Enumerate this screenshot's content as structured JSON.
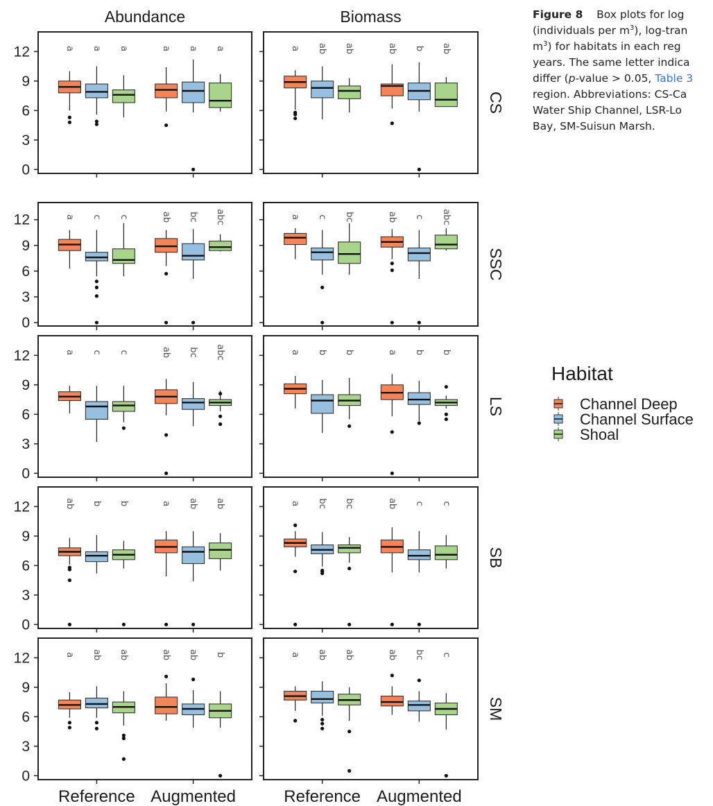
{
  "figure_caption": {
    "label": "Figure 8",
    "lines": [
      "Box plots for log",
      "(individuals per m",
      "m",
      "years. The same letter indica",
      "differ (",
      "region. Abbreviations: CS-Ca",
      "Water Ship Channel, LSR-Lo",
      "Bay, SM-Suisun Marsh."
    ],
    "line2_tail": "), log-tran",
    "line3_tail": ") for habitats in each reg",
    "sup": "3",
    "p_italic": "p",
    "line5_mid": "-value > 0.05, ",
    "table_ref": "Table 3"
  },
  "chart_data": {
    "type": "boxplot",
    "columns": [
      "Abundance",
      "Biomass"
    ],
    "rows": [
      "CS",
      "SSC",
      "LS",
      "SB",
      "SM"
    ],
    "x_categories": [
      "Reference",
      "Augmented"
    ],
    "y_ticks": [
      0,
      3,
      6,
      9,
      12
    ],
    "ylim": [
      -0.4,
      14
    ],
    "legend": {
      "title": "Habitat",
      "entries": [
        {
          "name": "Channel Deep",
          "color": "#f4855a"
        },
        {
          "name": "Channel Surface",
          "color": "#96bfe0"
        },
        {
          "name": "Shoal",
          "color": "#a8d48b"
        }
      ]
    },
    "panels": [
      {
        "column": "Abundance",
        "row": "CS",
        "boxes": [
          {
            "x": "Reference",
            "habitat": "Channel Deep",
            "lw": 6.0,
            "q1": 7.8,
            "med": 8.4,
            "q3": 9.0,
            "uw": 10.0,
            "outliers": [
              4.8,
              5.3
            ],
            "letter": "a"
          },
          {
            "x": "Reference",
            "habitat": "Channel Surface",
            "lw": 5.6,
            "q1": 7.3,
            "med": 7.9,
            "q3": 8.7,
            "uw": 10.5,
            "outliers": [
              4.6,
              4.9
            ],
            "letter": "a"
          },
          {
            "x": "Reference",
            "habitat": "Shoal",
            "lw": 5.3,
            "q1": 6.8,
            "med": 7.6,
            "q3": 8.1,
            "uw": 9.6,
            "outliers": [],
            "letter": "a"
          },
          {
            "x": "Augmented",
            "habitat": "Channel Deep",
            "lw": 5.9,
            "q1": 7.3,
            "med": 8.1,
            "q3": 8.7,
            "uw": 10.4,
            "outliers": [
              4.5
            ],
            "letter": "a"
          },
          {
            "x": "Augmented",
            "habitat": "Channel Surface",
            "lw": 5.8,
            "q1": 6.8,
            "med": 8.0,
            "q3": 8.9,
            "uw": 11.2,
            "outliers": [
              0.0
            ],
            "letter": "a"
          },
          {
            "x": "Augmented",
            "habitat": "Shoal",
            "lw": 5.9,
            "q1": 6.3,
            "med": 7.0,
            "q3": 8.8,
            "uw": 9.7,
            "outliers": [],
            "letter": "a"
          }
        ]
      },
      {
        "column": "Biomass",
        "row": "CS",
        "boxes": [
          {
            "x": "Reference",
            "habitat": "Channel Deep",
            "lw": 6.1,
            "q1": 8.3,
            "med": 8.9,
            "q3": 9.5,
            "uw": 10.1,
            "outliers": [
              5.2,
              5.6,
              5.8
            ],
            "letter": "a"
          },
          {
            "x": "Reference",
            "habitat": "Channel Surface",
            "lw": 5.1,
            "q1": 7.3,
            "med": 8.3,
            "q3": 9.0,
            "uw": 10.5,
            "outliers": [],
            "letter": "ab"
          },
          {
            "x": "Reference",
            "habitat": "Shoal",
            "lw": 5.8,
            "q1": 7.2,
            "med": 8.0,
            "q3": 8.5,
            "uw": 9.3,
            "outliers": [],
            "letter": "ab"
          },
          {
            "x": "Augmented",
            "habitat": "Channel Deep",
            "lw": 6.2,
            "q1": 7.5,
            "med": 8.5,
            "q3": 8.7,
            "uw": 10.7,
            "outliers": [
              4.7
            ],
            "letter": "ab"
          },
          {
            "x": "Augmented",
            "habitat": "Channel Surface",
            "lw": 5.9,
            "q1": 7.1,
            "med": 8.0,
            "q3": 8.8,
            "uw": 10.9,
            "outliers": [
              0.0
            ],
            "letter": "b"
          },
          {
            "x": "Augmented",
            "habitat": "Shoal",
            "lw": 6.4,
            "q1": 6.4,
            "med": 7.1,
            "q3": 8.8,
            "uw": 9.4,
            "outliers": [],
            "letter": "ab"
          }
        ]
      },
      {
        "column": "Abundance",
        "row": "SSC",
        "boxes": [
          {
            "x": "Reference",
            "habitat": "Channel Deep",
            "lw": 6.3,
            "q1": 8.4,
            "med": 9.1,
            "q3": 9.7,
            "uw": 10.8,
            "outliers": [],
            "letter": "a"
          },
          {
            "x": "Reference",
            "habitat": "Channel Surface",
            "lw": 5.4,
            "q1": 7.2,
            "med": 7.6,
            "q3": 8.2,
            "uw": 10.8,
            "outliers": [
              0.0,
              3.1,
              4.1,
              4.8
            ],
            "letter": "c"
          },
          {
            "x": "Reference",
            "habitat": "Shoal",
            "lw": 5.4,
            "q1": 6.9,
            "med": 7.3,
            "q3": 8.6,
            "uw": 11.6,
            "outliers": [],
            "letter": "c"
          },
          {
            "x": "Augmented",
            "habitat": "Channel Deep",
            "lw": 6.6,
            "q1": 8.2,
            "med": 8.9,
            "q3": 9.8,
            "uw": 10.8,
            "outliers": [
              0.0,
              5.7
            ],
            "letter": "ab"
          },
          {
            "x": "Augmented",
            "habitat": "Channel Surface",
            "lw": 5.1,
            "q1": 7.3,
            "med": 7.8,
            "q3": 9.2,
            "uw": 10.9,
            "outliers": [
              0.0
            ],
            "letter": "bc"
          },
          {
            "x": "Augmented",
            "habitat": "Shoal",
            "lw": 8.3,
            "q1": 8.4,
            "med": 8.8,
            "q3": 9.5,
            "uw": 10.3,
            "outliers": [],
            "letter": "abc"
          }
        ]
      },
      {
        "column": "Biomass",
        "row": "SSC",
        "boxes": [
          {
            "x": "Reference",
            "habitat": "Channel Deep",
            "lw": 7.4,
            "q1": 9.1,
            "med": 9.9,
            "q3": 10.4,
            "uw": 11.0,
            "outliers": [],
            "letter": "a"
          },
          {
            "x": "Reference",
            "habitat": "Channel Surface",
            "lw": 5.6,
            "q1": 7.3,
            "med": 8.2,
            "q3": 8.7,
            "uw": 10.8,
            "outliers": [
              0.0,
              4.1
            ],
            "letter": "c"
          },
          {
            "x": "Reference",
            "habitat": "Shoal",
            "lw": 5.6,
            "q1": 6.9,
            "med": 8.0,
            "q3": 9.4,
            "uw": 11.6,
            "outliers": [],
            "letter": "bc"
          },
          {
            "x": "Augmented",
            "habitat": "Channel Deep",
            "lw": 7.4,
            "q1": 8.8,
            "med": 9.4,
            "q3": 10.0,
            "uw": 10.9,
            "outliers": [
              0.0,
              6.1,
              6.9
            ],
            "letter": "ab"
          },
          {
            "x": "Augmented",
            "habitat": "Channel Surface",
            "lw": 5.1,
            "q1": 7.2,
            "med": 8.1,
            "q3": 8.7,
            "uw": 10.8,
            "outliers": [
              0.0
            ],
            "letter": "c"
          },
          {
            "x": "Augmented",
            "habitat": "Shoal",
            "lw": 8.4,
            "q1": 8.6,
            "med": 9.1,
            "q3": 10.2,
            "uw": 11.0,
            "outliers": [],
            "letter": "abc"
          }
        ]
      },
      {
        "column": "Abundance",
        "row": "LS",
        "boxes": [
          {
            "x": "Reference",
            "habitat": "Channel Deep",
            "lw": 6.1,
            "q1": 7.4,
            "med": 7.8,
            "q3": 8.3,
            "uw": 8.9,
            "outliers": [],
            "letter": "a"
          },
          {
            "x": "Reference",
            "habitat": "Channel Surface",
            "lw": 3.2,
            "q1": 5.5,
            "med": 6.8,
            "q3": 7.3,
            "uw": 8.9,
            "outliers": [],
            "letter": "c"
          },
          {
            "x": "Reference",
            "habitat": "Shoal",
            "lw": 5.2,
            "q1": 6.3,
            "med": 6.9,
            "q3": 7.3,
            "uw": 8.9,
            "outliers": [
              4.6
            ],
            "letter": "c"
          },
          {
            "x": "Augmented",
            "habitat": "Channel Deep",
            "lw": 5.9,
            "q1": 7.1,
            "med": 7.8,
            "q3": 8.5,
            "uw": 9.6,
            "outliers": [
              0.0,
              3.9
            ],
            "letter": "ab"
          },
          {
            "x": "Augmented",
            "habitat": "Channel Surface",
            "lw": 4.8,
            "q1": 6.5,
            "med": 7.2,
            "q3": 7.6,
            "uw": 9.3,
            "outliers": [],
            "letter": "bc"
          },
          {
            "x": "Augmented",
            "habitat": "Shoal",
            "lw": 6.3,
            "q1": 6.9,
            "med": 7.2,
            "q3": 7.5,
            "uw": 8.4,
            "outliers": [
              5.0,
              5.8,
              8.1
            ],
            "letter": "abc"
          }
        ]
      },
      {
        "column": "Biomass",
        "row": "LS",
        "boxes": [
          {
            "x": "Reference",
            "habitat": "Channel Deep",
            "lw": 6.6,
            "q1": 8.1,
            "med": 8.6,
            "q3": 9.1,
            "uw": 9.9,
            "outliers": [],
            "letter": "a"
          },
          {
            "x": "Reference",
            "habitat": "Channel Surface",
            "lw": 4.1,
            "q1": 6.1,
            "med": 7.4,
            "q3": 8.0,
            "uw": 9.5,
            "outliers": [],
            "letter": "b"
          },
          {
            "x": "Reference",
            "habitat": "Shoal",
            "lw": 5.5,
            "q1": 6.9,
            "med": 7.4,
            "q3": 8.0,
            "uw": 9.7,
            "outliers": [
              4.8
            ],
            "letter": "b"
          },
          {
            "x": "Augmented",
            "habitat": "Channel Deep",
            "lw": 5.8,
            "q1": 7.5,
            "med": 8.2,
            "q3": 9.0,
            "uw": 10.1,
            "outliers": [
              0.0,
              4.2
            ],
            "letter": "a"
          },
          {
            "x": "Augmented",
            "habitat": "Channel Surface",
            "lw": 5.3,
            "q1": 7.0,
            "med": 7.5,
            "q3": 8.2,
            "uw": 9.4,
            "outliers": [
              5.1
            ],
            "letter": "b"
          },
          {
            "x": "Augmented",
            "habitat": "Shoal",
            "lw": 6.6,
            "q1": 6.9,
            "med": 7.2,
            "q3": 7.5,
            "uw": 7.9,
            "outliers": [
              5.5,
              6.0,
              8.8
            ],
            "letter": "b"
          }
        ]
      },
      {
        "column": "Abundance",
        "row": "SB",
        "boxes": [
          {
            "x": "Reference",
            "habitat": "Channel Deep",
            "lw": 6.1,
            "q1": 7.0,
            "med": 7.4,
            "q3": 7.8,
            "uw": 8.8,
            "outliers": [
              0.0,
              4.5,
              5.6,
              5.8
            ],
            "letter": "ab"
          },
          {
            "x": "Reference",
            "habitat": "Channel Surface",
            "lw": 5.2,
            "q1": 6.4,
            "med": 7.0,
            "q3": 7.4,
            "uw": 9.1,
            "outliers": [],
            "letter": "b"
          },
          {
            "x": "Reference",
            "habitat": "Shoal",
            "lw": 5.7,
            "q1": 6.6,
            "med": 7.1,
            "q3": 7.6,
            "uw": 8.5,
            "outliers": [
              0.0
            ],
            "letter": "b"
          },
          {
            "x": "Augmented",
            "habitat": "Channel Deep",
            "lw": 4.9,
            "q1": 7.3,
            "med": 7.9,
            "q3": 8.6,
            "uw": 9.5,
            "outliers": [
              0.0
            ],
            "letter": "a"
          },
          {
            "x": "Augmented",
            "habitat": "Channel Surface",
            "lw": 4.4,
            "q1": 6.2,
            "med": 7.4,
            "q3": 7.9,
            "uw": 9.5,
            "outliers": [
              0.0
            ],
            "letter": "ab"
          },
          {
            "x": "Augmented",
            "habitat": "Shoal",
            "lw": 5.5,
            "q1": 6.7,
            "med": 7.6,
            "q3": 8.3,
            "uw": 9.3,
            "outliers": [],
            "letter": "ab"
          }
        ]
      },
      {
        "column": "Biomass",
        "row": "SB",
        "boxes": [
          {
            "x": "Reference",
            "habitat": "Channel Deep",
            "lw": 6.9,
            "q1": 7.9,
            "med": 8.3,
            "q3": 8.7,
            "uw": 9.5,
            "outliers": [
              0.0,
              5.4,
              10.1
            ],
            "letter": "a"
          },
          {
            "x": "Reference",
            "habitat": "Channel Surface",
            "lw": 5.9,
            "q1": 7.2,
            "med": 7.6,
            "q3": 8.1,
            "uw": 9.4,
            "outliers": [
              5.2,
              5.4,
              5.5
            ],
            "letter": "bc"
          },
          {
            "x": "Reference",
            "habitat": "Shoal",
            "lw": 6.3,
            "q1": 7.3,
            "med": 7.8,
            "q3": 8.1,
            "uw": 8.9,
            "outliers": [
              0.0,
              5.7
            ],
            "letter": "bc"
          },
          {
            "x": "Augmented",
            "habitat": "Channel Deep",
            "lw": 5.3,
            "q1": 7.3,
            "med": 7.9,
            "q3": 8.6,
            "uw": 9.9,
            "outliers": [
              0.0
            ],
            "letter": "ab"
          },
          {
            "x": "Augmented",
            "habitat": "Channel Surface",
            "lw": 5.3,
            "q1": 6.6,
            "med": 7.0,
            "q3": 7.6,
            "uw": 9.5,
            "outliers": [
              0.0
            ],
            "letter": "c"
          },
          {
            "x": "Augmented",
            "habitat": "Shoal",
            "lw": 5.7,
            "q1": 6.6,
            "med": 7.1,
            "q3": 8.0,
            "uw": 9.1,
            "outliers": [],
            "letter": "c"
          }
        ]
      },
      {
        "column": "Abundance",
        "row": "SM",
        "boxes": [
          {
            "x": "Reference",
            "habitat": "Channel Deep",
            "lw": 5.9,
            "q1": 6.8,
            "med": 7.2,
            "q3": 7.7,
            "uw": 8.5,
            "outliers": [
              4.9,
              5.4
            ],
            "letter": "a"
          },
          {
            "x": "Reference",
            "habitat": "Channel Surface",
            "lw": 5.9,
            "q1": 6.9,
            "med": 7.3,
            "q3": 7.9,
            "uw": 9.1,
            "outliers": [
              4.8,
              5.4
            ],
            "letter": "ab"
          },
          {
            "x": "Reference",
            "habitat": "Shoal",
            "lw": 5.1,
            "q1": 6.4,
            "med": 7.0,
            "q3": 7.5,
            "uw": 8.6,
            "outliers": [
              1.7,
              3.8,
              4.1
            ],
            "letter": "ab"
          },
          {
            "x": "Augmented",
            "habitat": "Channel Deep",
            "lw": 5.6,
            "q1": 6.3,
            "med": 7.0,
            "q3": 8.0,
            "uw": 9.4,
            "outliers": [
              10.1
            ],
            "letter": "ab"
          },
          {
            "x": "Augmented",
            "habitat": "Channel Surface",
            "lw": 4.9,
            "q1": 6.2,
            "med": 6.8,
            "q3": 7.3,
            "uw": 8.7,
            "outliers": [
              9.8
            ],
            "letter": "ab"
          },
          {
            "x": "Augmented",
            "habitat": "Shoal",
            "lw": 4.9,
            "q1": 5.9,
            "med": 6.6,
            "q3": 7.3,
            "uw": 8.6,
            "outliers": [
              0.0
            ],
            "letter": "b"
          }
        ]
      },
      {
        "column": "Biomass",
        "row": "SM",
        "boxes": [
          {
            "x": "Reference",
            "habitat": "Channel Deep",
            "lw": 6.6,
            "q1": 7.7,
            "med": 8.1,
            "q3": 8.6,
            "uw": 9.1,
            "outliers": [
              5.6
            ],
            "letter": "a"
          },
          {
            "x": "Reference",
            "habitat": "Channel Surface",
            "lw": 6.1,
            "q1": 7.4,
            "med": 7.8,
            "q3": 8.6,
            "uw": 9.6,
            "outliers": [
              4.8,
              5.3,
              5.7
            ],
            "letter": "ab"
          },
          {
            "x": "Reference",
            "habitat": "Shoal",
            "lw": 5.6,
            "q1": 7.2,
            "med": 7.7,
            "q3": 8.3,
            "uw": 9.0,
            "outliers": [
              0.5,
              4.5
            ],
            "letter": "ab"
          },
          {
            "x": "Augmented",
            "habitat": "Channel Deep",
            "lw": 6.2,
            "q1": 7.1,
            "med": 7.5,
            "q3": 8.1,
            "uw": 9.1,
            "outliers": [
              10.2
            ],
            "letter": "ab"
          },
          {
            "x": "Augmented",
            "habitat": "Channel Surface",
            "lw": 5.5,
            "q1": 6.6,
            "med": 7.2,
            "q3": 7.6,
            "uw": 8.6,
            "outliers": [
              9.7
            ],
            "letter": "bc"
          },
          {
            "x": "Augmented",
            "habitat": "Shoal",
            "lw": 4.7,
            "q1": 6.2,
            "med": 6.8,
            "q3": 7.4,
            "uw": 8.4,
            "outliers": [
              0.0
            ],
            "letter": "c"
          }
        ]
      }
    ]
  }
}
